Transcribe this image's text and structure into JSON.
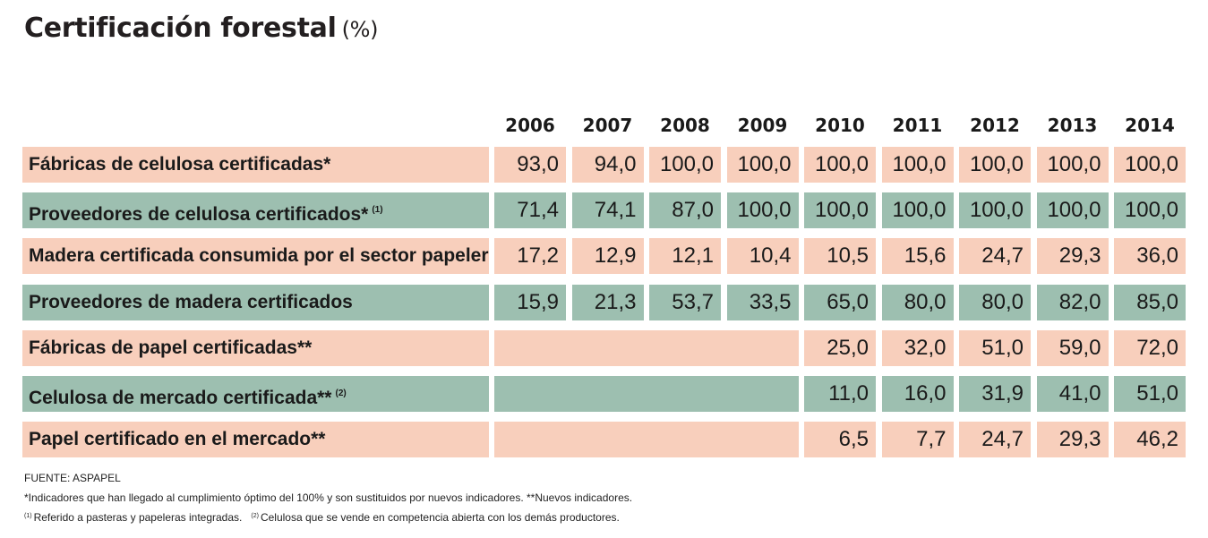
{
  "title": "Certificación forestal",
  "title_unit": "(%)",
  "chart_data": {
    "type": "table",
    "title": "Certificación forestal (%)",
    "columns": [
      "2006",
      "2007",
      "2008",
      "2009",
      "2010",
      "2011",
      "2012",
      "2013",
      "2014"
    ],
    "rows": [
      {
        "label": "Fábricas de celulosa certificadas*",
        "note": "",
        "color": "#f8cfbc",
        "values": [
          "93,0",
          "94,0",
          "100,0",
          "100,0",
          "100,0",
          "100,0",
          "100,0",
          "100,0",
          "100,0"
        ]
      },
      {
        "label": "Proveedores de celulosa certificados*",
        "note": "(1)",
        "color": "#9dbfb0",
        "values": [
          "71,4",
          "74,1",
          "87,0",
          "100,0",
          "100,0",
          "100,0",
          "100,0",
          "100,0",
          "100,0"
        ]
      },
      {
        "label": "Madera certificada consumida por el sector papelero",
        "note": "",
        "color": "#f8cfbc",
        "values": [
          "17,2",
          "12,9",
          "12,1",
          "10,4",
          "10,5",
          "15,6",
          "24,7",
          "29,3",
          "36,0"
        ]
      },
      {
        "label": "Proveedores de madera certificados",
        "note": "",
        "color": "#9dbfb0",
        "values": [
          "15,9",
          "21,3",
          "53,7",
          "33,5",
          "65,0",
          "80,0",
          "80,0",
          "82,0",
          "85,0"
        ]
      },
      {
        "label": "Fábricas de papel certificadas**",
        "note": "",
        "color": "#f8cfbc",
        "values": [
          null,
          null,
          null,
          null,
          "25,0",
          "32,0",
          "51,0",
          "59,0",
          "72,0"
        ]
      },
      {
        "label": "Celulosa de mercado certificada**",
        "note": "(2)",
        "color": "#9dbfb0",
        "values": [
          null,
          null,
          null,
          null,
          "11,0",
          "16,0",
          "31,9",
          "41,0",
          "51,0"
        ]
      },
      {
        "label": "Papel certificado en el mercado**",
        "note": "",
        "color": "#f8cfbc",
        "values": [
          null,
          null,
          null,
          null,
          "6,5",
          "7,7",
          "24,7",
          "29,3",
          "46,2"
        ]
      }
    ]
  },
  "footnotes": {
    "source": "FUENTE: ASPAPEL",
    "note_star": "*Indicadores que han llegado al cumplimiento óptimo del 100% y son sustituidos por nuevos indicadores.  **Nuevos indicadores.",
    "note1_mark": "(1)",
    "note1_text": "Referido a pasteras y papeleras integradas.",
    "note2_mark": "(2)",
    "note2_text": "Celulosa que se vende en competencia abierta con los demás productores."
  }
}
